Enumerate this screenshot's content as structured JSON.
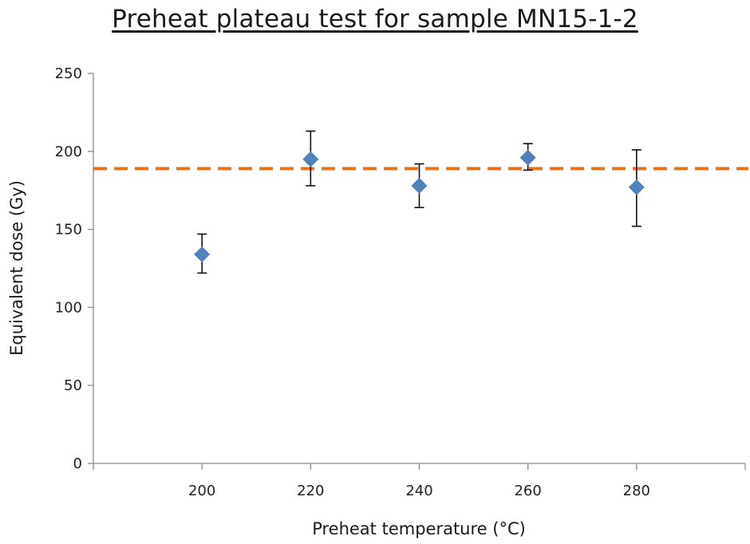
{
  "chart_data": {
    "type": "scatter",
    "title": "Preheat plateau test for sample MN15-1-2",
    "xlabel": "Preheat temperature (°C)",
    "ylabel": "Equivalent dose (Gy)",
    "xlim": [
      180,
      300
    ],
    "ylim": [
      0,
      250
    ],
    "x_ticks": [
      200,
      220,
      240,
      260,
      280
    ],
    "y_ticks": [
      0,
      50,
      100,
      150,
      200,
      250
    ],
    "grid": false,
    "series": [
      {
        "marker": "diamond",
        "color": "#4F81BD",
        "points": [
          {
            "x": 200,
            "y": 134,
            "err_low": 122,
            "err_high": 147
          },
          {
            "x": 220,
            "y": 195,
            "err_low": 178,
            "err_high": 213
          },
          {
            "x": 240,
            "y": 178,
            "err_low": 164,
            "err_high": 192
          },
          {
            "x": 260,
            "y": 196,
            "err_low": 188,
            "err_high": 205
          },
          {
            "x": 280,
            "y": 177,
            "err_low": 152,
            "err_high": 201
          }
        ]
      }
    ],
    "reference_line": {
      "y": 189,
      "style": "dashed",
      "color": "#E8731A"
    }
  }
}
